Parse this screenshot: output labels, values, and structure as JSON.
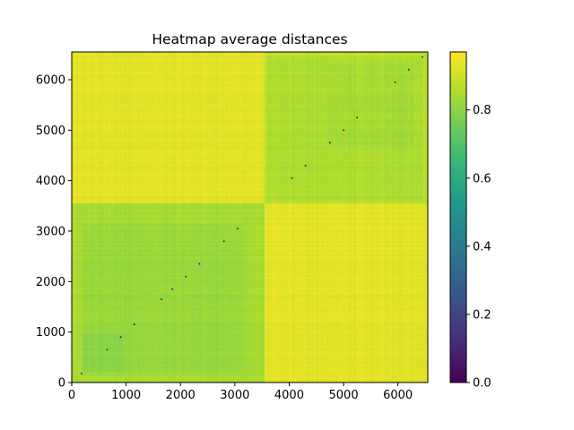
{
  "chart_data": {
    "type": "heatmap",
    "title": "Heatmap average distances",
    "xlabel": "",
    "ylabel": "",
    "xlim": [
      0,
      6550
    ],
    "ylim": [
      0,
      6550
    ],
    "x_ticks": [
      0,
      1000,
      2000,
      3000,
      4000,
      5000,
      6000
    ],
    "y_ticks": [
      0,
      1000,
      2000,
      3000,
      4000,
      5000,
      6000
    ],
    "x_tick_labels": [
      "0",
      "1000",
      "2000",
      "3000",
      "4000",
      "5000",
      "6000"
    ],
    "y_tick_labels": [
      "0",
      "1000",
      "2000",
      "3000",
      "4000",
      "5000",
      "6000"
    ],
    "colormap": "viridis",
    "colorbar": {
      "range": [
        0.0,
        0.97
      ],
      "ticks": [
        0.0,
        0.2,
        0.4,
        0.6,
        0.8
      ],
      "tick_labels": [
        "0.0",
        "0.2",
        "0.4",
        "0.6",
        "0.8"
      ]
    },
    "diagonal_value": 0.0,
    "blocks": [
      {
        "x": [
          0,
          3550
        ],
        "y": [
          0,
          3550
        ],
        "value": 0.84
      },
      {
        "x": [
          3550,
          6550
        ],
        "y": [
          3550,
          6550
        ],
        "value": 0.87
      },
      {
        "x": [
          0,
          3550
        ],
        "y": [
          3550,
          6550
        ],
        "value": 0.93
      },
      {
        "x": [
          3550,
          6550
        ],
        "y": [
          0,
          3550
        ],
        "value": 0.93
      },
      {
        "x": [
          200,
          3150
        ],
        "y": [
          200,
          3150
        ],
        "value": 0.82
      },
      {
        "x": [
          200,
          950
        ],
        "y": [
          200,
          950
        ],
        "value": 0.8
      },
      {
        "x": [
          3600,
          6450
        ],
        "y": [
          3600,
          6450
        ],
        "value": 0.85
      },
      {
        "x": [
          4700,
          6300
        ],
        "y": [
          4700,
          6300
        ],
        "value": 0.84
      }
    ]
  }
}
